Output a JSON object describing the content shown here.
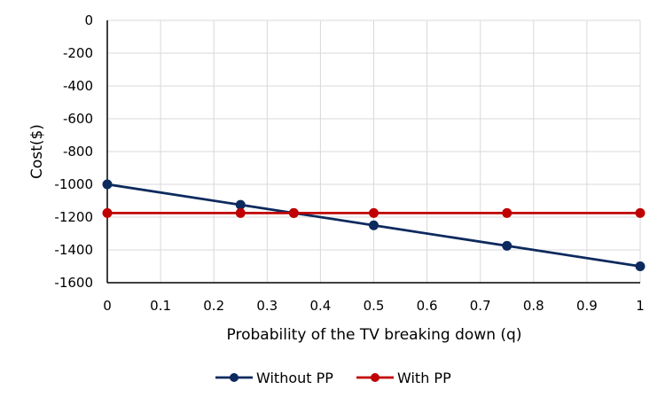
{
  "chart_data": {
    "type": "line",
    "title": "",
    "xlabel": "Probability of the TV breaking down (q)",
    "ylabel": "Cost($)",
    "xlim": [
      0,
      1
    ],
    "ylim": [
      -1600,
      0
    ],
    "x_ticks": [
      "0",
      "0.1",
      "0.2",
      "0.3",
      "0.4",
      "0.5",
      "0.6",
      "0.7",
      "0.8",
      "0.9",
      "1"
    ],
    "y_ticks": [
      "0",
      "-200",
      "-400",
      "-600",
      "-800",
      "-1000",
      "-1200",
      "-1400",
      "-1600"
    ],
    "grid": true,
    "legend_position": "bottom",
    "series": [
      {
        "name": "Without PP",
        "color": "#0d2a5e",
        "points": [
          {
            "x": 0,
            "y": -1000
          },
          {
            "x": 0.25,
            "y": -1125
          },
          {
            "x": 0.35,
            "y": -1175
          },
          {
            "x": 0.5,
            "y": -1250
          },
          {
            "x": 0.75,
            "y": -1375
          },
          {
            "x": 1,
            "y": -1500
          }
        ]
      },
      {
        "name": "With PP",
        "color": "#c00000",
        "points": [
          {
            "x": 0,
            "y": -1175
          },
          {
            "x": 0.25,
            "y": -1175
          },
          {
            "x": 0.35,
            "y": -1175
          },
          {
            "x": 0.5,
            "y": -1175
          },
          {
            "x": 0.75,
            "y": -1175
          },
          {
            "x": 1,
            "y": -1175
          }
        ]
      }
    ]
  }
}
